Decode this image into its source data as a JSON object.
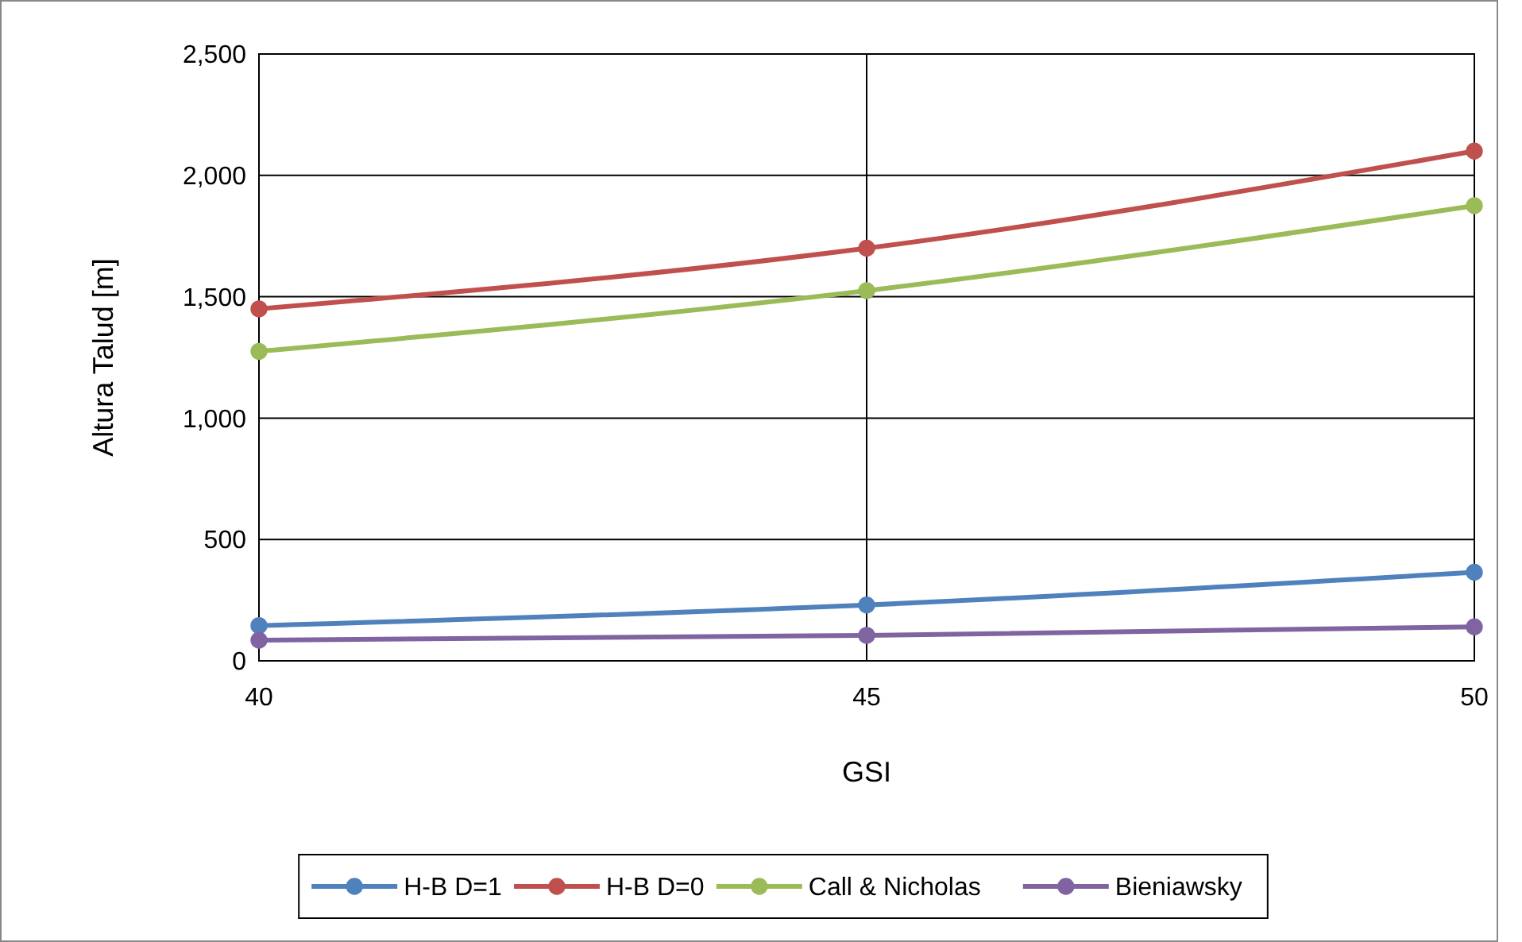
{
  "chart_data": {
    "type": "line",
    "xlabel": "GSI",
    "ylabel": "Altura Talud [m]",
    "x": [
      40,
      45,
      50
    ],
    "xlim": [
      40,
      50
    ],
    "xticks": [
      40,
      45,
      50
    ],
    "ylim": [
      0,
      2500
    ],
    "yticks": [
      {
        "value": 0,
        "label": "0"
      },
      {
        "value": 500,
        "label": "500"
      },
      {
        "value": 1000,
        "label": "1,000"
      },
      {
        "value": 1500,
        "label": "1,500"
      },
      {
        "value": 2000,
        "label": "2,000"
      },
      {
        "value": 2500,
        "label": "2,500"
      }
    ],
    "grid": true,
    "legend": "bottom",
    "marker": "circle",
    "line_style": "solid",
    "series": [
      {
        "name": "H-B D=1",
        "color": "#4f81bd",
        "values": [
          145,
          230,
          365
        ]
      },
      {
        "name": "H-B D=0",
        "color": "#c0504d",
        "values": [
          1450,
          1700,
          2100
        ]
      },
      {
        "name": "Call & Nicholas",
        "color": "#9bbb59",
        "values": [
          1275,
          1525,
          1875
        ]
      },
      {
        "name": "Bieniawsky",
        "color": "#8064a2",
        "values": [
          85,
          105,
          140
        ]
      }
    ]
  }
}
